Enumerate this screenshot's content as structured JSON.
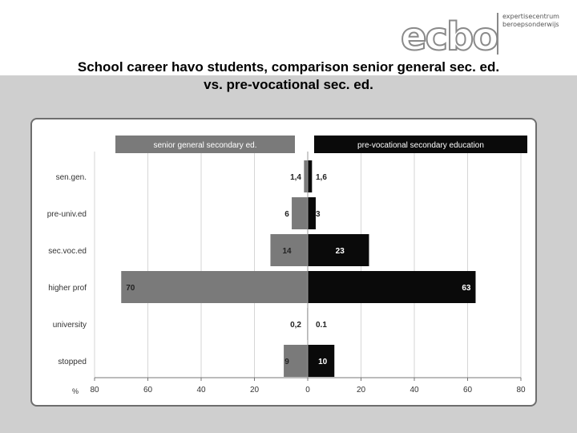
{
  "logo": {
    "word": "ecbo",
    "line1": "expertisecentrum",
    "line2": "beroepsonderwijs"
  },
  "title_line1": "School career havo students, comparison senior general sec. ed.",
  "title_line2": "vs. pre-vocational sec. ed.",
  "colors": {
    "left_series": "#7a7a7a",
    "right_series": "#0a0a0a",
    "band": "#cfcfcf"
  },
  "chart_data": {
    "type": "bar",
    "orientation": "horizontal-butterfly",
    "categories": [
      "sen.gen.",
      "pre-univ.ed",
      "sec.voc.ed",
      "higher prof",
      "university",
      "stopped"
    ],
    "series": [
      {
        "name": "senior general secondary ed.",
        "side": "left",
        "values": [
          1.4,
          6,
          14,
          70,
          0.2,
          9
        ],
        "labels": [
          "1,4",
          "6",
          "14",
          "70",
          "0,2",
          "9"
        ]
      },
      {
        "name": "pre-vocational secondary education",
        "side": "right",
        "values": [
          1.6,
          3,
          23,
          63,
          0.1,
          10
        ],
        "labels": [
          "1,6",
          "3",
          "23",
          "63",
          "0.1",
          "10"
        ]
      }
    ],
    "x_ticks": [
      "80",
      "60",
      "40",
      "20",
      "0",
      "20",
      "40",
      "60",
      "80"
    ],
    "x_unit": "%",
    "xlim": [
      -80,
      80
    ],
    "grid": true,
    "legend": "top"
  }
}
